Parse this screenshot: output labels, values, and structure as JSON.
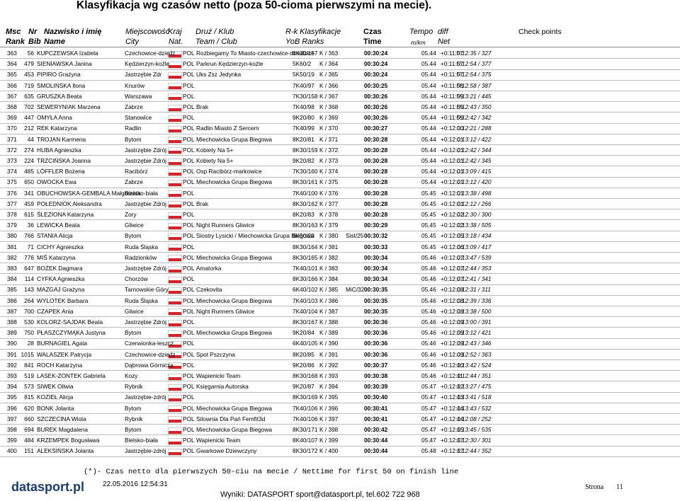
{
  "header": {
    "title": "Klasyfikacja wg czasów netto (poza 50-cioma pierwszymi na mecie).",
    "columns": [
      {
        "top": "Msc",
        "bottom": "Rank"
      },
      {
        "top": "Nr",
        "bottom": "Bib"
      },
      {
        "top": "Nazwisko i imię",
        "bottom": "Name"
      },
      {
        "top": "Miejscowość",
        "bottom": "City"
      },
      {
        "top": "Kraj",
        "bottom": "Nat."
      },
      {
        "top": "Druż / Klub",
        "bottom": "Team / Club"
      },
      {
        "top": "R-k Klasyfikacje",
        "bottom": "YoB Ranks"
      },
      {
        "top": "Czas",
        "bottom": "Time"
      },
      {
        "top": "Tempo",
        "bottom": "m/km"
      },
      {
        "top": "diff",
        "bottom": "Net"
      },
      {
        "top": "Check points"
      }
    ]
  },
  "rows": [
    [
      "363",
      "56",
      "KUPCZEWSKA Izabela",
      "Czechowice-dziedz",
      "POL",
      "Rozbiegamy To Miasto-czechowice-dziedzice",
      "6K30/157",
      "K / 363",
      "",
      "00:30:24",
      "05.44",
      "+0:11:57",
      "0:12:35 / 327"
    ],
    [
      "364",
      "479",
      "SIENIAWSKA Janina",
      "Kędzierzyn-koźle",
      "POL",
      "Parkrun Kędzierzyn-koźle",
      "5K60/2",
      "K / 364",
      "",
      "00:30:24",
      "05.44",
      "+0:11:57",
      "0:12:54 / 377"
    ],
    [
      "365",
      "453",
      "PIPIRO Grażyna",
      "Jastrzębie Zdr",
      "POL",
      "Uks Zsz Jedynka",
      "5K50/19",
      "K / 365",
      "",
      "00:30:24",
      "05.44",
      "+0:11:57",
      "0:12:54 / 375"
    ],
    [
      "366",
      "719",
      "SMOLIŃSKA Ilona",
      "Knurów",
      "POL",
      "",
      "7K40/97",
      "K / 366",
      "",
      "00:30:25",
      "05.44",
      "+0:11:58",
      "0:12:58 / 387"
    ],
    [
      "367",
      "635",
      "GRUSZKA Beata",
      "Warszawa",
      "POL",
      "",
      "7K30/158",
      "K / 367",
      "",
      "00:30:26",
      "05.44",
      "+0:11:59",
      "0:13:21 / 445"
    ],
    [
      "368",
      "702",
      "SEWERYNIAK Marzena",
      "Zabrze",
      "POL",
      "Brak",
      "7K40/98",
      "K / 368",
      "",
      "00:30:26",
      "05.44",
      "+0:11:59",
      "0:12:43 / 350"
    ],
    [
      "369",
      "447",
      "OMYŁA Anna",
      "Stanowice",
      "POL",
      "",
      "9K20/80",
      "K / 369",
      "",
      "00:30:26",
      "05.44",
      "+0:11:59",
      "0:12:42 / 342"
    ],
    [
      "370",
      "212",
      "REK Katarzyna",
      "Radlin",
      "POL",
      "Radlin Miasto Z Sercem",
      "7K40/99",
      "K / 370",
      "",
      "00:30:27",
      "05.44",
      "+0:12:00",
      "0:12:21 / 288"
    ],
    [
      "371",
      "44",
      "TROJAN Karmena",
      "Bytom",
      "POL",
      "Miechowicka Grupa Biegowa",
      "8K20/81",
      "K / 371",
      "",
      "00:30:28",
      "05.44",
      "+0:12:01",
      "0:13:12 / 422"
    ],
    [
      "372",
      "274",
      "HUBA Agnieszka",
      "Jastrzębie Zdrój",
      "POL",
      "Kobiety Na 5+",
      "8K30/159",
      "K / 372",
      "",
      "00:30:28",
      "05.44",
      "+0:12:01",
      "0:12:42 / 344"
    ],
    [
      "373",
      "224",
      "TRZCIŃSKA Joanna",
      "Jastrzębie Zdrój",
      "POL",
      "Kobiety Na 5+",
      "9K20/82",
      "K / 373",
      "",
      "00:30:28",
      "05.44",
      "+0:12:01",
      "0:12:42 / 345"
    ],
    [
      "374",
      "485",
      "LÖFFLER Bożena",
      "Racibórz",
      "POL",
      "Osp Racibórz-markowice",
      "7K30/160",
      "K / 374",
      "",
      "00:30:28",
      "05.44",
      "+0:12:01",
      "0:13:09 / 415"
    ],
    [
      "375",
      "650",
      "OWOCKA Ewa",
      "Zabrze",
      "POL",
      "Miechowicka Grupa Biegowa",
      "8K30/161",
      "K / 375",
      "",
      "00:30:28",
      "05.44",
      "+0:12:01",
      "0:13:12 / 420"
    ],
    [
      "376",
      "341",
      "OBUCHOWSKA-GEMBALA Małgorzata",
      "Bielsko-biała",
      "POL",
      "",
      "7K40/100",
      "K / 376",
      "",
      "00:30:28",
      "05.45",
      "+0:12:01",
      "0:13:38 / 498"
    ],
    [
      "377",
      "459",
      "POŁEDNIOK Aleksandra",
      "Jastrzębie Zdrój",
      "POL",
      "Brak",
      "8K30/162",
      "K / 377",
      "",
      "00:30:28",
      "05.45",
      "+0:12:01",
      "0:12:12 / 266"
    ],
    [
      "378",
      "615",
      "ŚLEZIONA Katarzyna",
      "Żory",
      "POL",
      "",
      "8K20/83",
      "K / 378",
      "",
      "00:30:28",
      "05.45",
      "+0:12:02",
      "0:12:30 / 300"
    ],
    [
      "379",
      "36",
      "LEWICKA Beata",
      "Gliwice",
      "POL",
      "Night Runners Gliwice",
      "8K30/163",
      "K / 379",
      "",
      "00:30:29",
      "05.45",
      "+0:12:02",
      "0:13:38 / 505"
    ],
    [
      "380",
      "766",
      "STANIA Alicja",
      "Bytom",
      "POL",
      "Siostry Lysicki / Miechowicka Grupa Biegowa",
      "6K50/20",
      "K / 380",
      "Sist/25",
      "00:30:32",
      "05.45",
      "+0:12:05",
      "0:13:18 / 434"
    ],
    [
      "381",
      "71",
      "CICHY Agnieszka",
      "Ruda Śląska",
      "POL",
      "",
      "8K30/164",
      "K / 381",
      "",
      "00:30:33",
      "05.45",
      "+0:12:06",
      "0:13:09 / 417"
    ],
    [
      "382",
      "776",
      "MIŚ Katarzyna",
      "Radzionków",
      "POL",
      "Miechowicka Grupa Biegowa",
      "8K30/165",
      "K / 382",
      "",
      "00:30:34",
      "05.46",
      "+0:12:07",
      "0:13:47 / 539"
    ],
    [
      "383",
      "647",
      "BOŻEK Dagmara",
      "Jastrzębie Zdrój",
      "POL",
      "Amatorka",
      "7K40/101",
      "K / 383",
      "",
      "00:30:34",
      "05.46",
      "+0:12:07",
      "0:12:44 / 353"
    ],
    [
      "384",
      "114",
      "CYFKA Agnieszka",
      "Chorzów",
      "POL",
      "",
      "8K30/166",
      "K / 384",
      "",
      "00:30:34",
      "05.46",
      "+0:12:07",
      "0:12:41 / 341"
    ],
    [
      "385",
      "143",
      "MAZGAJ Grażyna",
      "Tarnowskie Góry",
      "POL",
      "Czekovita",
      "6K40/102",
      "K / 385",
      "MiC/32",
      "00:30:35",
      "05.46",
      "+0:12:08",
      "0:12:31 / 311"
    ],
    [
      "386",
      "264",
      "WYLOTEK Barbara",
      "Ruda Śląska",
      "POL",
      "Miechowicka Grupa Biegowa",
      "7K40/103",
      "K / 386",
      "",
      "00:30:35",
      "05.46",
      "+0:12:08",
      "0:12:39 / 336"
    ],
    [
      "387",
      "700",
      "CZAPEK Ania",
      "Gliwice",
      "POL",
      "Night Runners Gliwice",
      "7K40/104",
      "K / 387",
      "",
      "00:30:35",
      "05.46",
      "+0:12:08",
      "0:13:38 / 500"
    ],
    [
      "388",
      "530",
      "KOLORZ-SAJDAK Beata",
      "Jastrzębie Zdrój",
      "POL",
      "",
      "8K30/167",
      "K / 388",
      "",
      "00:30:36",
      "05.46",
      "+0:12:09",
      "0:13:00 / 391"
    ],
    [
      "389",
      "750",
      "PŁASZCZYMĄKA Justyna",
      "Bytom",
      "POL",
      "Miechowicka Grupa Biegowa",
      "9K20/84",
      "K / 389",
      "",
      "00:30:36",
      "05.46",
      "+0:12:09",
      "0:13:12 / 421"
    ],
    [
      "390",
      "28",
      "BURNAGIEL Agata",
      "Czerwionka-leszcz",
      "POL",
      "",
      "6K40/105",
      "K / 390",
      "",
      "00:30:36",
      "05.46",
      "+0:12:09",
      "0:12:43 / 346"
    ],
    [
      "391",
      "1015",
      "WALASZEK Patrycja",
      "Czechowice-dziedz",
      "POL",
      "Spot Pszczyna",
      "8K20/85",
      "K / 391",
      "",
      "00:30:36",
      "05.46",
      "+0:12:09",
      "0:12:52 / 363"
    ],
    [
      "392",
      "841",
      "ROCH Katarzyna",
      "Dąbrowa Górnicza",
      "POL",
      "",
      "9K20/86",
      "K / 392",
      "",
      "00:30:37",
      "05.46",
      "+0:12:10",
      "0:13:42 / 524"
    ],
    [
      "393",
      "519",
      "LASEK-ZONTEK Gabriela",
      "Kozy",
      "POL",
      "Wapienicki Team",
      "8K30/168",
      "K / 393",
      "",
      "00:30:38",
      "05.46",
      "+0:12:11",
      "0:12:44 / 351"
    ],
    [
      "394",
      "573",
      "SIWEK Oliwia",
      "Rybnik",
      "POL",
      "Księgarnia Autorska",
      "9K20/87",
      "K / 394",
      "",
      "00:30:39",
      "05.47",
      "+0:12:12",
      "0:13:27 / 475"
    ],
    [
      "395",
      "815",
      "KOZIEŁ Alicja",
      "Jastrzębie-zdrój",
      "POL",
      "",
      "8K30/169",
      "K / 395",
      "",
      "00:30:40",
      "05.47",
      "+0:12:13",
      "0:13:41 / 518"
    ],
    [
      "396",
      "620",
      "BONK Jolanta",
      "Bytom",
      "POL",
      "Miechowicka Grupa Biegowa",
      "7K40/106",
      "K / 396",
      "",
      "00:30:41",
      "05.47",
      "+0:12:14",
      "0:13:43 / 532"
    ],
    [
      "397",
      "660",
      "SZCZECINA Wiola",
      "Rybnik",
      "POL",
      "Silownia Dla Pań Femfit3d",
      "7K40/106",
      "K / 397",
      "",
      "00:30:41",
      "05.47",
      "+0:12:14",
      "0:12:08 / 252"
    ],
    [
      "398",
      "694",
      "BUREK Magdalena",
      "Bytom",
      "POL",
      "Miechowicka Grupa Biegowa",
      "8K30/171",
      "K / 398",
      "",
      "00:30:42",
      "05.47",
      "+0:12:15",
      "0:13:45 / 535"
    ],
    [
      "399",
      "484",
      "KRZEMPEK Bogusława",
      "Bielsko-biała",
      "POL",
      "Wapienicki Team",
      "8K40/107",
      "K / 399",
      "",
      "00:30:44",
      "05.47",
      "+0:12:17",
      "0:12:30 / 301"
    ],
    [
      "400",
      "151",
      "ALEKSIŃSKA Jolanta",
      "Jastrzębie-zdrój",
      "POL",
      "Gwarkowe Dziewczyny",
      "8K30/172",
      "K / 400",
      "",
      "00:30:44",
      "05.48",
      "+0:12:17",
      "0:12:44 / 352"
    ]
  ],
  "footer": {
    "note": "(*)- Czas netto dla pierwszych 50-ciu na mecie / Nettime for first 50 on finish line",
    "logo": "datasport.pl",
    "date": "22.05.2016 12:54:31",
    "credit": "Wyniki: DATASPORT sport@datasport.pl, tel.602 722 968",
    "page_label": "Strona",
    "page_number": "11"
  }
}
